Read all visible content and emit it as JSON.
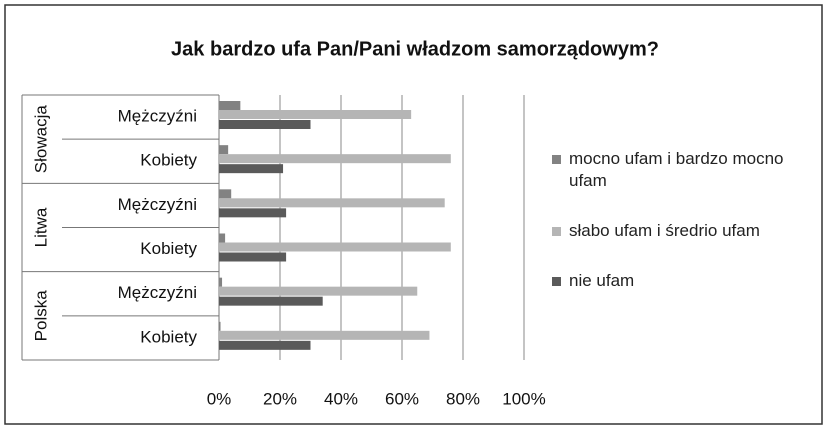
{
  "chart_data": {
    "type": "bar",
    "orientation": "horizontal",
    "title": "Jak bardzo ufa Pan/Pani władzom samorządowym?",
    "groups": [
      {
        "name": "Słowacja",
        "categories": [
          "Mężczyźni",
          "Kobiety"
        ]
      },
      {
        "name": "Litwa",
        "categories": [
          "Mężczyźni",
          "Kobiety"
        ]
      },
      {
        "name": "Polska",
        "categories": [
          "Mężczyźni",
          "Kobiety"
        ]
      }
    ],
    "series": [
      {
        "name": "mocno ufam i bardzo mocno ufam",
        "color": "#828282",
        "values": [
          7,
          3,
          4,
          2,
          1,
          0.5
        ]
      },
      {
        "name": "słabo ufam i średrio ufam",
        "color": "#b5b5b5",
        "values": [
          63,
          76,
          74,
          76,
          65,
          69
        ]
      },
      {
        "name": "nie ufam",
        "color": "#5a5a5a",
        "values": [
          30,
          21,
          22,
          22,
          34,
          30
        ]
      }
    ],
    "xlim": [
      0,
      100
    ],
    "xticks": [
      {
        "value": 0,
        "label": "0%"
      },
      {
        "value": 20,
        "label": "20%"
      },
      {
        "value": 40,
        "label": "40%"
      },
      {
        "value": 60,
        "label": "60%"
      },
      {
        "value": 80,
        "label": "80%"
      },
      {
        "value": 100,
        "label": "100%"
      }
    ],
    "grid": true,
    "legend": "right"
  }
}
